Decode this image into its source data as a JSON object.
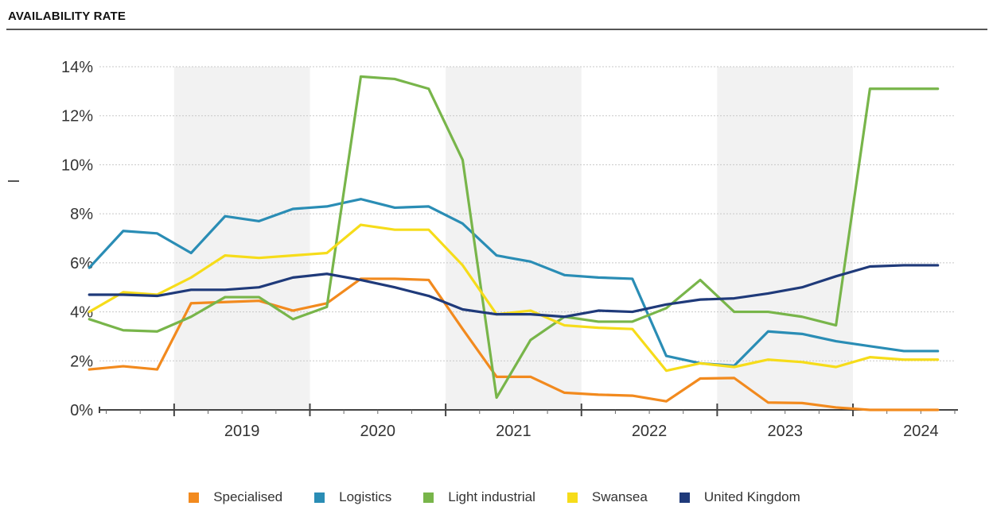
{
  "title": "AVAILABILITY RATE",
  "chart_data": {
    "type": "line",
    "title": "AVAILABILITY RATE",
    "xlabel": "",
    "ylabel": "",
    "x_start_year": 2018.45,
    "x_end_year": 2024.75,
    "ylim": [
      0,
      14
    ],
    "y_ticks": [
      0,
      2,
      4,
      6,
      8,
      10,
      12,
      14
    ],
    "y_tick_labels": [
      "0%",
      "2%",
      "4%",
      "6%",
      "8%",
      "10%",
      "12%",
      "14%"
    ],
    "x_categories": [
      "2019",
      "2020",
      "2021",
      "2022",
      "2023",
      "2024"
    ],
    "grid": "horizontal dotted",
    "legend_position": "bottom",
    "x": [
      "2018 Q2",
      "2018 Q3",
      "2018 Q4",
      "2019 Q1",
      "2019 Q2",
      "2019 Q3",
      "2019 Q4",
      "2020 Q1",
      "2020 Q2",
      "2020 Q3",
      "2020 Q4",
      "2021 Q1",
      "2021 Q2",
      "2021 Q3",
      "2021 Q4",
      "2022 Q1",
      "2022 Q2",
      "2022 Q3",
      "2022 Q4",
      "2023 Q1",
      "2023 Q2",
      "2023 Q3",
      "2023 Q4",
      "2024 Q1",
      "2024 Q2",
      "2024 Q3"
    ],
    "series": [
      {
        "name": "Specialised",
        "color": "#F28A1E",
        "values": [
          1.65,
          1.78,
          1.65,
          4.35,
          4.4,
          4.45,
          4.05,
          4.35,
          5.35,
          5.35,
          5.3,
          3.3,
          1.35,
          1.35,
          0.7,
          0.62,
          0.58,
          0.35,
          1.28,
          1.3,
          0.3,
          0.28,
          0.1,
          0.0,
          0.0,
          0.0
        ]
      },
      {
        "name": "Logistics",
        "color": "#2A8DB5",
        "values": [
          5.8,
          7.3,
          7.2,
          6.4,
          7.9,
          7.7,
          8.2,
          8.3,
          8.6,
          8.25,
          8.3,
          7.6,
          6.3,
          6.05,
          5.5,
          5.4,
          5.35,
          2.2,
          1.9,
          1.8,
          3.2,
          3.1,
          2.8,
          2.6,
          2.4,
          2.4
        ]
      },
      {
        "name": "Light industrial",
        "color": "#78B54A",
        "values": [
          3.7,
          3.25,
          3.2,
          3.8,
          4.6,
          4.6,
          3.7,
          4.2,
          13.6,
          13.5,
          13.1,
          10.2,
          0.5,
          2.85,
          3.8,
          3.6,
          3.6,
          4.15,
          5.3,
          4.0,
          4.0,
          3.8,
          3.45,
          13.1,
          13.1,
          13.1
        ]
      },
      {
        "name": "Swansea",
        "color": "#F6DC1A",
        "values": [
          4.0,
          4.8,
          4.7,
          5.4,
          6.3,
          6.2,
          6.3,
          6.4,
          7.55,
          7.35,
          7.35,
          5.9,
          3.9,
          4.05,
          3.45,
          3.35,
          3.3,
          1.6,
          1.9,
          1.75,
          2.05,
          1.95,
          1.75,
          2.15,
          2.05,
          2.05
        ]
      },
      {
        "name": "United Kingdom",
        "color": "#1F3A7A",
        "values": [
          4.7,
          4.7,
          4.65,
          4.9,
          4.9,
          5.0,
          5.4,
          5.55,
          5.3,
          5.0,
          4.65,
          4.1,
          3.9,
          3.9,
          3.8,
          4.05,
          4.0,
          4.3,
          4.5,
          4.55,
          4.75,
          5.0,
          5.45,
          5.85,
          5.9,
          5.9
        ]
      }
    ]
  }
}
